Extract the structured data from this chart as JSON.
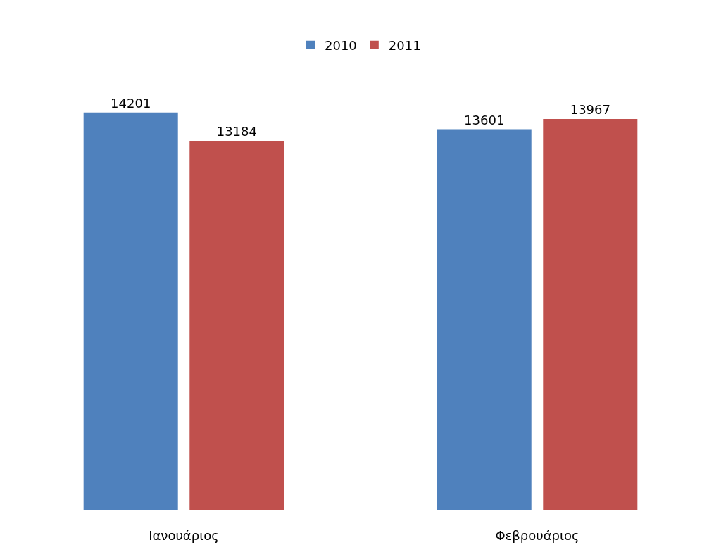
{
  "chart_data": {
    "type": "bar",
    "categories": [
      "Ιανουάριος",
      "Φεβρουάριος"
    ],
    "series": [
      {
        "name": "2010",
        "color": "#4f81bd",
        "values": [
          14201,
          13601
        ]
      },
      {
        "name": "2011",
        "color": "#c0504d",
        "values": [
          13184,
          13967
        ]
      }
    ],
    "data_labels": true,
    "legend": "top",
    "tick_labels": "x"
  }
}
